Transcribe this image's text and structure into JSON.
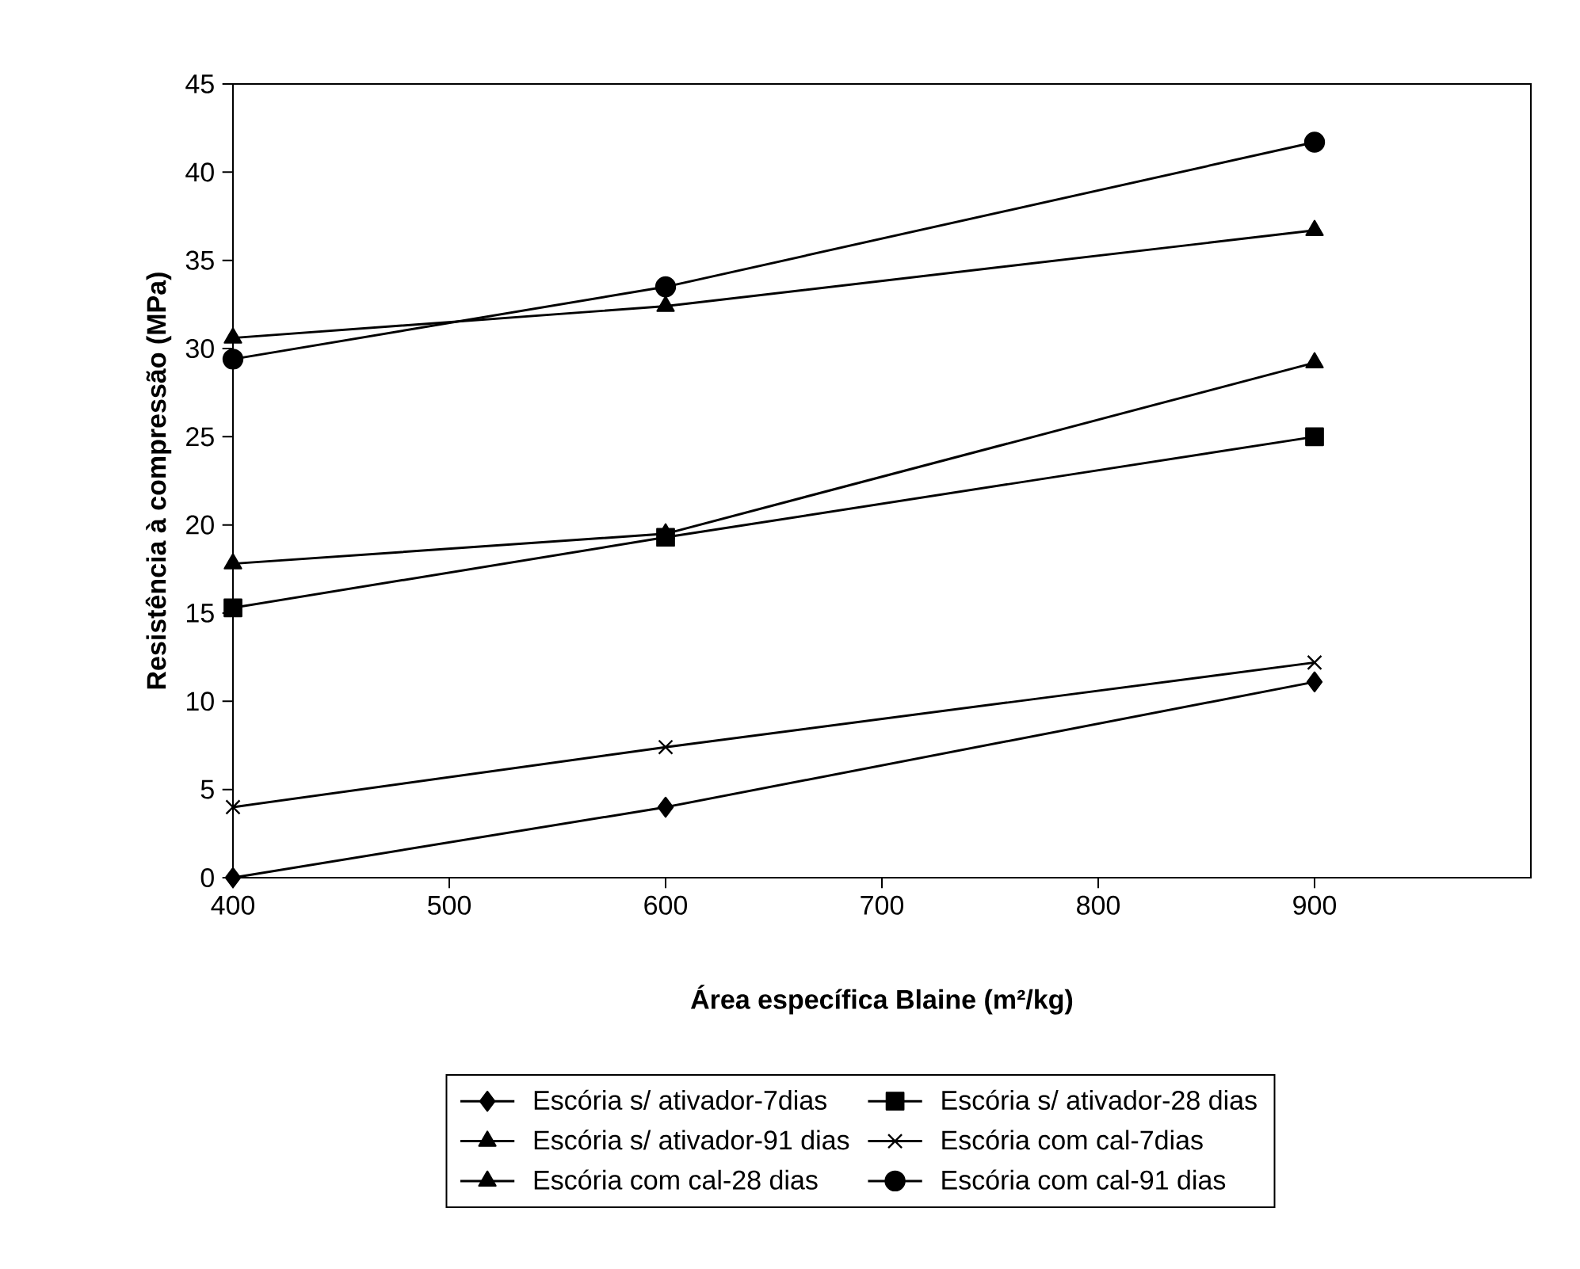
{
  "chart_data": {
    "type": "line",
    "xlabel": "Área específica Blaine (m²/kg)",
    "ylabel": "Resistência à compressão (MPa)",
    "x": [
      400,
      600,
      900
    ],
    "xlim": [
      400,
      1000
    ],
    "xticks": [
      400,
      500,
      600,
      700,
      800,
      900
    ],
    "ylim": [
      0,
      45
    ],
    "yticks": [
      0,
      5,
      10,
      15,
      20,
      25,
      30,
      35,
      40,
      45
    ],
    "grid": false,
    "legend": "bottom",
    "line_style": "solid",
    "series": [
      {
        "name": "Escória s/ ativador-7dias",
        "color": "#000000",
        "marker": "diamond",
        "values": [
          0,
          4.0,
          11.1
        ]
      },
      {
        "name": "Escória s/ ativador-28 dias",
        "color": "#000000",
        "marker": "square",
        "values": [
          15.3,
          19.3,
          25.0
        ]
      },
      {
        "name": "Escória s/ ativador-91 dias",
        "color": "#000000",
        "marker": "triangle",
        "values": [
          30.6,
          32.4,
          36.7
        ]
      },
      {
        "name": "Escória com cal-7dias",
        "color": "#000000",
        "marker": "cross",
        "values": [
          4.0,
          7.4,
          12.2
        ]
      },
      {
        "name": "Escória com cal-28 dias",
        "color": "#000000",
        "marker": "triangle",
        "values": [
          17.8,
          19.5,
          29.2
        ]
      },
      {
        "name": "Escória com cal-91 dias",
        "color": "#000000",
        "marker": "circle",
        "values": [
          29.4,
          33.5,
          41.7
        ]
      }
    ]
  }
}
